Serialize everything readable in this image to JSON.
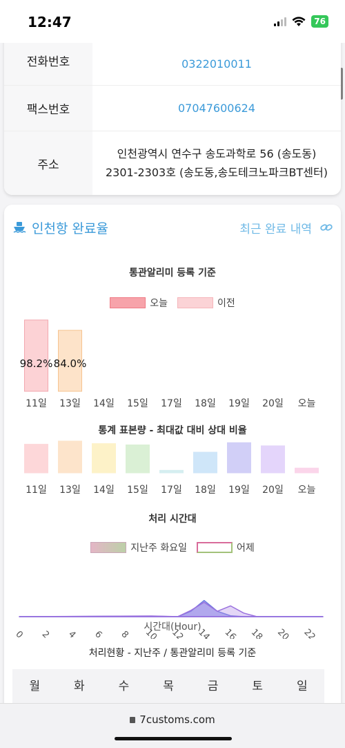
{
  "status": {
    "time": "12:47",
    "battery": "76"
  },
  "info_rows": [
    {
      "label": "전화번호",
      "value": "0322010011"
    },
    {
      "label": "팩스번호",
      "value": "07047600624"
    },
    {
      "label": "주소",
      "value_line1": "인천광역시 연수구 송도과학로 56 (송도동)",
      "value_line2": "2301-2303호 (송도동,송도테크노파크BT센터)"
    }
  ],
  "card": {
    "title": "인천항 완료율",
    "recent_link": "최근 완료 내역",
    "icon": "ship-icon",
    "link_icon": "chain-link-icon"
  },
  "colors": {
    "accent": "#3b9ad9",
    "today": "#f4939b",
    "previous": "#fbd3d6"
  },
  "chart_data": [
    {
      "type": "bar",
      "title": "통관알리미 등록 기준",
      "legend": [
        "오늘",
        "이전"
      ],
      "categories": [
        "11일",
        "13일",
        "14일",
        "15일",
        "17일",
        "18일",
        "19일",
        "20일",
        "오늘"
      ],
      "values": [
        98.2,
        84.0,
        null,
        null,
        null,
        null,
        null,
        null,
        null
      ],
      "labels": [
        "98.2%",
        "84.0%"
      ]
    },
    {
      "type": "bar",
      "title": "통계 표본량 - 최대값 대비 상대 비율",
      "categories": [
        "11일",
        "13일",
        "14일",
        "15일",
        "17일",
        "18일",
        "19일",
        "20일",
        "오늘"
      ],
      "values": [
        0.9,
        1.0,
        0.92,
        0.88,
        0.08,
        0.65,
        0.95,
        0.85,
        0.15
      ],
      "colors": [
        "#fdd5d8",
        "#fde3c9",
        "#fdf2c6",
        "#d9f0d3",
        "#d3eef0",
        "#cde5f9",
        "#cfcdf7",
        "#e3d3fb",
        "#fbd3e9"
      ]
    },
    {
      "type": "area",
      "title": "처리 시간대",
      "legend": [
        "지난주 화요일",
        "어제"
      ],
      "xlabel": "시간대(Hour)",
      "x_ticks": [
        0,
        2,
        4,
        6,
        8,
        10,
        12,
        14,
        16,
        18,
        20,
        22
      ],
      "series": [
        {
          "name": "지난주 화요일",
          "x": [
            0,
            10,
            12,
            13,
            14,
            15,
            16,
            17,
            18,
            22,
            23
          ],
          "y": [
            0,
            0.03,
            0,
            0.3,
            0.9,
            0.3,
            0.05,
            0,
            0,
            0,
            0
          ]
        },
        {
          "name": "어제",
          "x": [
            0,
            10,
            12,
            13,
            14,
            15,
            16,
            17,
            18,
            22,
            23
          ],
          "y": [
            0,
            0.04,
            0,
            0.35,
            0.8,
            0.3,
            0.6,
            0.2,
            0,
            0,
            0
          ]
        }
      ]
    }
  ],
  "weekly": {
    "title": "처리현황 - 지난주 / 통관알리미 등록 기준",
    "days": [
      "월",
      "화",
      "수",
      "목",
      "금",
      "토",
      "일"
    ]
  },
  "browser": {
    "url": "7customs.com"
  }
}
